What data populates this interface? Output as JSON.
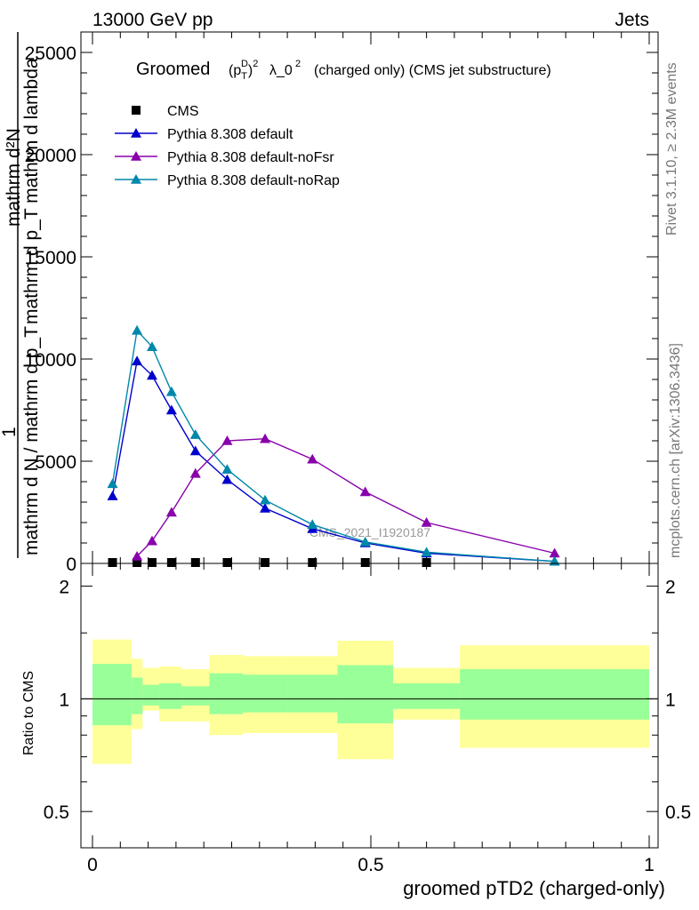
{
  "header": {
    "left": "13000 GeV pp",
    "right": "Jets"
  },
  "side_labels": {
    "rivet": "Rivet 3.1.10, ≥ 2.3M events",
    "mcplots": "mcplots.cern.ch [arXiv:1306.3436]"
  },
  "watermark": "CMS_2021_I1920187",
  "top_ylabel": {
    "numerator": "mathrm d²N",
    "denominator": "mathrm d p_T mathrm d lambda",
    "prefix_num": "1",
    "prefix_den": "mathrm d N / mathrm d p_T"
  },
  "ratio_ylabel": "Ratio to CMS",
  "xlabel": "groomed pTD2 (charged-only)",
  "chart_data": [
    {
      "type": "line",
      "title": "Groomed (p_T^D)^2 λ_0^2 (charged only) (CMS jet substructure)",
      "title_main": "Groomed",
      "title_rest": "λ_0",
      "title_tail": "(charged only) (CMS jet substructure)",
      "xlim": [
        0,
        1
      ],
      "ylim": [
        0,
        26000
      ],
      "y_ticks": [
        0,
        5000,
        10000,
        15000,
        20000,
        25000
      ],
      "y_tick_labels": [
        "0",
        "5000",
        "10000",
        "15000",
        "20000",
        "25000"
      ],
      "legend_placement": "top-left",
      "series": [
        {
          "name": "CMS",
          "color": "#000000",
          "marker": "square",
          "x": [
            0.036,
            0.08,
            0.107,
            0.142,
            0.185,
            0.242,
            0.31,
            0.395,
            0.49,
            0.6
          ],
          "y": [
            10,
            12,
            12,
            12,
            12,
            10,
            10,
            8,
            8,
            5
          ]
        },
        {
          "name": "Pythia 8.308 default",
          "color": "#0000cc",
          "marker": "triangle",
          "x": [
            0.036,
            0.08,
            0.107,
            0.142,
            0.185,
            0.242,
            0.31,
            0.395,
            0.49,
            0.6,
            0.83
          ],
          "y": [
            3300,
            9900,
            9200,
            7500,
            5500,
            4100,
            2700,
            1700,
            1000,
            500,
            100
          ]
        },
        {
          "name": "Pythia 8.308 default-noFsr",
          "color": "#8800aa",
          "marker": "triangle",
          "x": [
            0.08,
            0.107,
            0.142,
            0.185,
            0.242,
            0.31,
            0.395,
            0.49,
            0.6,
            0.83
          ],
          "y": [
            350,
            1100,
            2500,
            4400,
            6000,
            6100,
            5100,
            3500,
            2000,
            500
          ]
        },
        {
          "name": "Pythia 8.308 default-noRap",
          "color": "#0088aa",
          "marker": "triangle",
          "x": [
            0.036,
            0.08,
            0.107,
            0.142,
            0.185,
            0.242,
            0.31,
            0.395,
            0.49,
            0.6,
            0.83
          ],
          "y": [
            3900,
            11400,
            10600,
            8400,
            6300,
            4600,
            3100,
            1900,
            1050,
            550,
            100
          ]
        }
      ]
    },
    {
      "type": "area",
      "ylabel": "Ratio to CMS",
      "xlabel": "groomed pTD2 (charged-only)",
      "xlim": [
        0,
        1
      ],
      "ylim": [
        0.4,
        2.3
      ],
      "x_ticks": [
        0,
        0.5,
        1
      ],
      "x_tick_labels": [
        "0",
        "0.5",
        "1"
      ],
      "y_ticks": [
        0.5,
        1,
        2
      ],
      "y_tick_labels": [
        "0.5",
        "1",
        "2"
      ],
      "bins": [
        0,
        0.07,
        0.09,
        0.12,
        0.16,
        0.21,
        0.27,
        0.35,
        0.44,
        0.54,
        0.66,
        1.0
      ],
      "band_outer": {
        "color": "#ffff99",
        "low": [
          0.67,
          0.83,
          0.93,
          0.87,
          0.87,
          0.8,
          0.81,
          0.81,
          0.69,
          0.88,
          0.74
        ],
        "high": [
          1.44,
          1.28,
          1.21,
          1.22,
          1.2,
          1.31,
          1.3,
          1.3,
          1.43,
          1.21,
          1.39
        ]
      },
      "band_inner": {
        "color": "#99ff99",
        "low": [
          0.85,
          0.91,
          0.96,
          0.94,
          0.96,
          0.91,
          0.92,
          0.92,
          0.86,
          0.94,
          0.88
        ],
        "high": [
          1.24,
          1.14,
          1.09,
          1.1,
          1.08,
          1.17,
          1.16,
          1.16,
          1.23,
          1.1,
          1.2
        ]
      },
      "reference": 1
    }
  ]
}
